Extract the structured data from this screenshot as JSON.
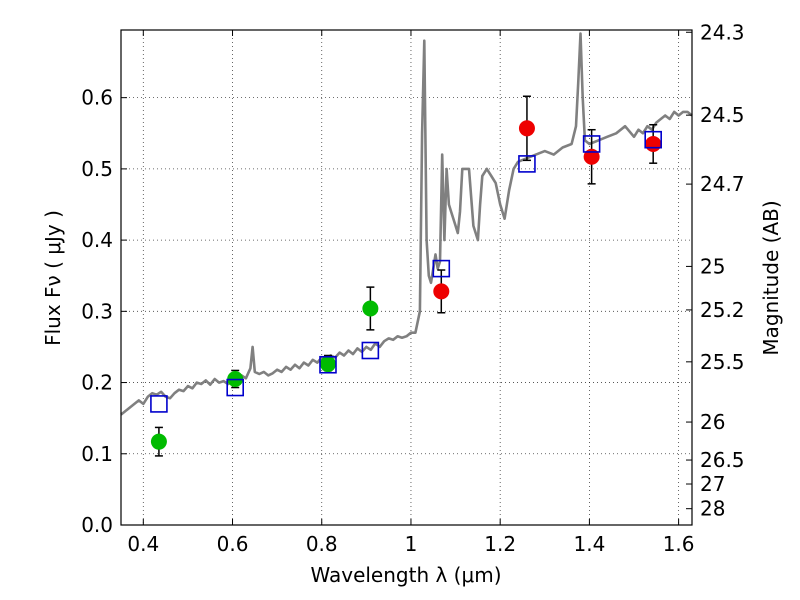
{
  "chart_data": {
    "type": "scatter",
    "xlabel": "Wavelength  λ (μm)",
    "ylabel": "Flux  Fν  ( μJy )",
    "y2label": "Magnitude (AB)",
    "xlim": [
      0.35,
      1.63
    ],
    "ylim": [
      0.0,
      0.695
    ],
    "x_ticks": [
      "0.4",
      "0.6",
      "0.8",
      "1",
      "1.2",
      "1.4",
      "1.6"
    ],
    "y_ticks": [
      "0.0",
      "0.1",
      "0.2",
      "0.3",
      "0.4",
      "0.5",
      "0.6"
    ],
    "mag_ticks": [
      "24.3",
      "24.5",
      "24.7",
      "25",
      "25.2",
      "25.5",
      "26",
      "26.5",
      "27",
      "28"
    ],
    "grid": true,
    "colors": {
      "spectrum": "#808080",
      "green_points": "#00bb00",
      "red_points": "#ee0000",
      "model_squares": "#0000cc",
      "error_bars": "#000000"
    },
    "spectrum_model": [
      [
        0.35,
        0.155
      ],
      [
        0.36,
        0.16
      ],
      [
        0.37,
        0.165
      ],
      [
        0.38,
        0.17
      ],
      [
        0.39,
        0.175
      ],
      [
        0.4,
        0.17
      ],
      [
        0.41,
        0.18
      ],
      [
        0.42,
        0.185
      ],
      [
        0.43,
        0.183
      ],
      [
        0.44,
        0.187
      ],
      [
        0.45,
        0.18
      ],
      [
        0.46,
        0.178
      ],
      [
        0.47,
        0.185
      ],
      [
        0.48,
        0.19
      ],
      [
        0.49,
        0.188
      ],
      [
        0.5,
        0.195
      ],
      [
        0.51,
        0.192
      ],
      [
        0.52,
        0.2
      ],
      [
        0.53,
        0.198
      ],
      [
        0.54,
        0.203
      ],
      [
        0.55,
        0.197
      ],
      [
        0.56,
        0.205
      ],
      [
        0.57,
        0.2
      ],
      [
        0.58,
        0.202
      ],
      [
        0.59,
        0.198
      ],
      [
        0.6,
        0.205
      ],
      [
        0.61,
        0.2
      ],
      [
        0.62,
        0.21
      ],
      [
        0.63,
        0.206
      ],
      [
        0.64,
        0.22
      ],
      [
        0.645,
        0.25
      ],
      [
        0.65,
        0.215
      ],
      [
        0.66,
        0.212
      ],
      [
        0.67,
        0.215
      ],
      [
        0.68,
        0.21
      ],
      [
        0.69,
        0.213
      ],
      [
        0.7,
        0.218
      ],
      [
        0.71,
        0.215
      ],
      [
        0.72,
        0.222
      ],
      [
        0.73,
        0.218
      ],
      [
        0.74,
        0.225
      ],
      [
        0.75,
        0.22
      ],
      [
        0.76,
        0.228
      ],
      [
        0.77,
        0.224
      ],
      [
        0.78,
        0.232
      ],
      [
        0.79,
        0.228
      ],
      [
        0.8,
        0.235
      ],
      [
        0.81,
        0.232
      ],
      [
        0.82,
        0.238
      ],
      [
        0.83,
        0.235
      ],
      [
        0.84,
        0.242
      ],
      [
        0.85,
        0.238
      ],
      [
        0.86,
        0.245
      ],
      [
        0.87,
        0.24
      ],
      [
        0.88,
        0.248
      ],
      [
        0.89,
        0.243
      ],
      [
        0.9,
        0.25
      ],
      [
        0.91,
        0.246
      ],
      [
        0.92,
        0.255
      ],
      [
        0.93,
        0.25
      ],
      [
        0.94,
        0.258
      ],
      [
        0.95,
        0.262
      ],
      [
        0.96,
        0.26
      ],
      [
        0.97,
        0.265
      ],
      [
        0.98,
        0.263
      ],
      [
        0.99,
        0.265
      ],
      [
        1.0,
        0.27
      ],
      [
        1.01,
        0.27
      ],
      [
        1.02,
        0.3
      ],
      [
        1.025,
        0.55
      ],
      [
        1.03,
        0.68
      ],
      [
        1.035,
        0.4
      ],
      [
        1.04,
        0.35
      ],
      [
        1.045,
        0.34
      ],
      [
        1.05,
        0.36
      ],
      [
        1.055,
        0.38
      ],
      [
        1.06,
        0.36
      ],
      [
        1.065,
        0.37
      ],
      [
        1.07,
        0.52
      ],
      [
        1.075,
        0.4
      ],
      [
        1.08,
        0.5
      ],
      [
        1.085,
        0.45
      ],
      [
        1.09,
        0.44
      ],
      [
        1.1,
        0.42
      ],
      [
        1.105,
        0.41
      ],
      [
        1.11,
        0.44
      ],
      [
        1.115,
        0.5
      ],
      [
        1.12,
        0.5
      ],
      [
        1.13,
        0.5
      ],
      [
        1.135,
        0.46
      ],
      [
        1.14,
        0.42
      ],
      [
        1.15,
        0.4
      ],
      [
        1.155,
        0.45
      ],
      [
        1.16,
        0.49
      ],
      [
        1.17,
        0.5
      ],
      [
        1.18,
        0.49
      ],
      [
        1.19,
        0.48
      ],
      [
        1.2,
        0.45
      ],
      [
        1.21,
        0.43
      ],
      [
        1.22,
        0.47
      ],
      [
        1.23,
        0.5
      ],
      [
        1.24,
        0.51
      ],
      [
        1.26,
        0.515
      ],
      [
        1.28,
        0.52
      ],
      [
        1.3,
        0.525
      ],
      [
        1.32,
        0.52
      ],
      [
        1.34,
        0.53
      ],
      [
        1.36,
        0.535
      ],
      [
        1.37,
        0.56
      ],
      [
        1.375,
        0.62
      ],
      [
        1.38,
        0.69
      ],
      [
        1.385,
        0.6
      ],
      [
        1.39,
        0.54
      ],
      [
        1.4,
        0.535
      ],
      [
        1.42,
        0.54
      ],
      [
        1.44,
        0.545
      ],
      [
        1.46,
        0.55
      ],
      [
        1.48,
        0.56
      ],
      [
        1.5,
        0.545
      ],
      [
        1.51,
        0.555
      ],
      [
        1.52,
        0.55
      ],
      [
        1.53,
        0.56
      ],
      [
        1.54,
        0.555
      ],
      [
        1.55,
        0.565
      ],
      [
        1.56,
        0.57
      ],
      [
        1.57,
        0.575
      ],
      [
        1.58,
        0.57
      ],
      [
        1.59,
        0.58
      ],
      [
        1.6,
        0.575
      ],
      [
        1.61,
        0.58
      ],
      [
        1.62,
        0.58
      ],
      [
        1.63,
        0.575
      ]
    ],
    "series": [
      {
        "marker": "circle",
        "color_key": "green_points",
        "points": [
          {
            "x": 0.435,
            "y": 0.117,
            "err": 0.02
          },
          {
            "x": 0.606,
            "y": 0.205,
            "err": 0.012
          },
          {
            "x": 0.814,
            "y": 0.226,
            "err": 0.012
          },
          {
            "x": 0.909,
            "y": 0.304,
            "err": 0.03
          }
        ]
      },
      {
        "marker": "circle",
        "color_key": "red_points",
        "points": [
          {
            "x": 1.068,
            "y": 0.328,
            "err": 0.03
          },
          {
            "x": 1.26,
            "y": 0.557,
            "err": 0.045
          },
          {
            "x": 1.405,
            "y": 0.517,
            "err": 0.038
          },
          {
            "x": 1.543,
            "y": 0.535,
            "err": 0.027
          }
        ]
      },
      {
        "marker": "square",
        "color_key": "model_squares",
        "points": [
          {
            "x": 0.435,
            "y": 0.17
          },
          {
            "x": 0.606,
            "y": 0.193
          },
          {
            "x": 0.814,
            "y": 0.225
          },
          {
            "x": 0.909,
            "y": 0.245
          },
          {
            "x": 1.068,
            "y": 0.36
          },
          {
            "x": 1.26,
            "y": 0.507
          },
          {
            "x": 1.405,
            "y": 0.535
          },
          {
            "x": 1.543,
            "y": 0.541
          }
        ]
      }
    ]
  }
}
